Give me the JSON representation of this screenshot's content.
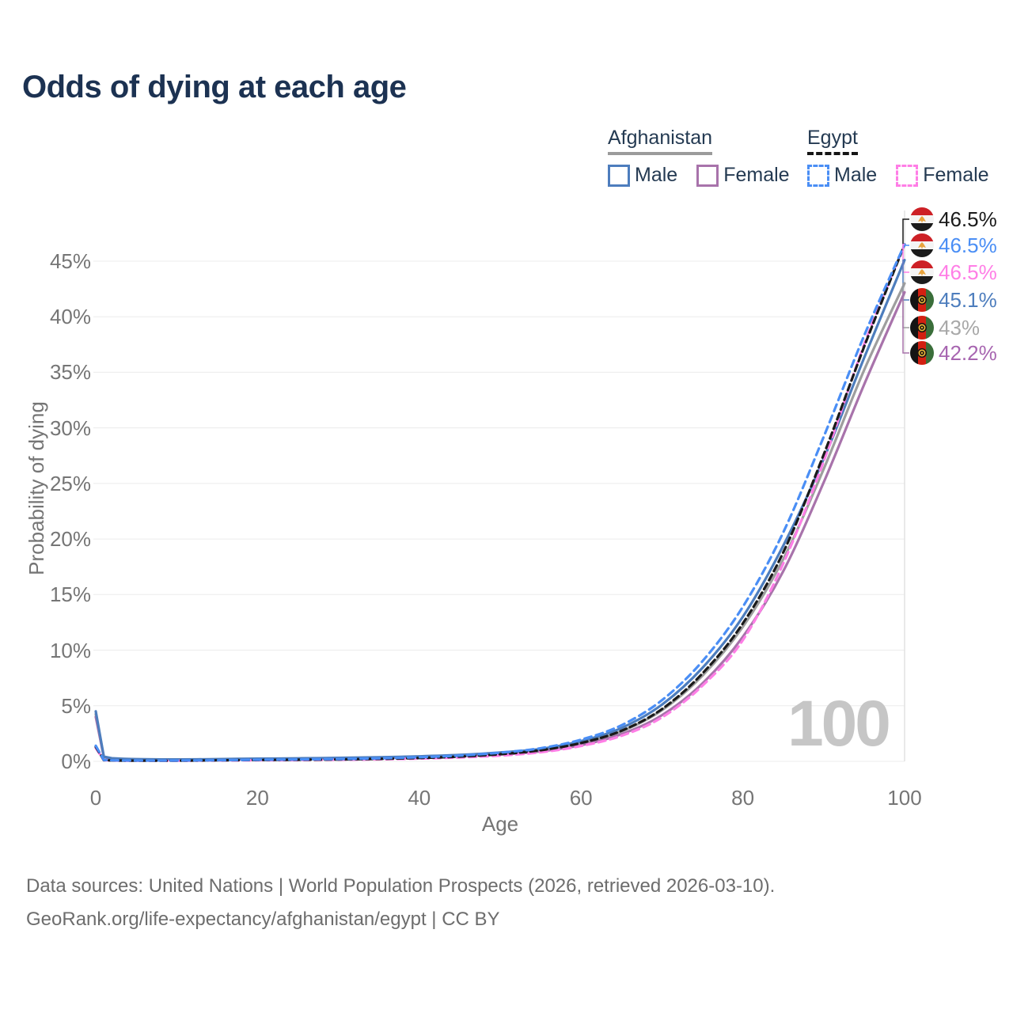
{
  "page": {
    "title": "Odds of dying at each age",
    "watermark": "100",
    "footer_line1": "Data sources: United Nations | World Population Prospects (2026, retrieved 2026-03-10).",
    "footer_line2": "GeoRank.org/life-expectancy/afghanistan/egypt | CC BY"
  },
  "legend": {
    "groups": [
      {
        "country": "Afghanistan",
        "line_style": "solid",
        "underline_color": "#9b9b9b",
        "items": [
          {
            "label": "Male",
            "color": "#4d7dbd",
            "dashed": false
          },
          {
            "label": "Female",
            "color": "#a873ab",
            "dashed": false
          }
        ]
      },
      {
        "country": "Egypt",
        "line_style": "dashed",
        "underline_color": "#151515",
        "items": [
          {
            "label": "Male",
            "color": "#4a8ef5",
            "dashed": true
          },
          {
            "label": "Female",
            "color": "#ff7ee6",
            "dashed": true
          }
        ]
      }
    ]
  },
  "chart_data": {
    "type": "line",
    "title": "Odds of dying at each age",
    "xlabel": "Age",
    "ylabel": "Probability of dying",
    "xlim": [
      0,
      100
    ],
    "ylim": [
      0,
      46.5
    ],
    "grid": "horizontal",
    "legend_position": "top-right",
    "hover_age_label": "100",
    "x_ticks": [
      0,
      20,
      40,
      60,
      80,
      100
    ],
    "y_tick_values": [
      0,
      5,
      10,
      15,
      20,
      25,
      30,
      35,
      40,
      45
    ],
    "y_tick_labels": [
      "0%",
      "5%",
      "10%",
      "15%",
      "20%",
      "25%",
      "30%",
      "35%",
      "40%",
      "45%"
    ],
    "ages": [
      0,
      1,
      2,
      5,
      10,
      15,
      20,
      25,
      30,
      35,
      40,
      45,
      50,
      55,
      60,
      65,
      70,
      75,
      80,
      85,
      90,
      95,
      100
    ],
    "series": [
      {
        "name": "Egypt Both sexes",
        "country": "egypt",
        "sex": "both",
        "color": "#1a1a1a",
        "dashed": true,
        "end_label": "46.5%",
        "end_label_color": "#1a1a1a",
        "values": [
          1.3,
          0.11,
          0.08,
          0.06,
          0.06,
          0.09,
          0.12,
          0.14,
          0.17,
          0.22,
          0.3,
          0.43,
          0.64,
          1.0,
          1.65,
          2.75,
          4.7,
          7.9,
          12.4,
          18.8,
          27.6,
          37.3,
          46.5
        ]
      },
      {
        "name": "Egypt Male",
        "country": "egypt",
        "sex": "male",
        "color": "#4a8ef5",
        "dashed": true,
        "end_label": "46.5%",
        "end_label_color": "#4a8ef5",
        "values": [
          1.4,
          0.12,
          0.09,
          0.07,
          0.07,
          0.1,
          0.14,
          0.17,
          0.21,
          0.27,
          0.37,
          0.52,
          0.78,
          1.18,
          1.95,
          3.25,
          5.5,
          9.0,
          13.9,
          20.6,
          29.2,
          38.3,
          46.5
        ]
      },
      {
        "name": "Egypt Female",
        "country": "egypt",
        "sex": "female",
        "color": "#ff7ee6",
        "dashed": true,
        "end_label": "46.5%",
        "end_label_color": "#ff7ee6",
        "values": [
          1.2,
          0.1,
          0.07,
          0.05,
          0.05,
          0.07,
          0.09,
          0.11,
          0.14,
          0.18,
          0.25,
          0.35,
          0.52,
          0.82,
          1.38,
          2.3,
          3.95,
          6.8,
          10.9,
          17.8,
          27.0,
          37.5,
          46.5
        ]
      },
      {
        "name": "Afghanistan Male",
        "country": "afghanistan",
        "sex": "male",
        "color": "#4d7dbd",
        "dashed": false,
        "end_label": "45.1%",
        "end_label_color": "#4d7dbd",
        "values": [
          4.5,
          0.42,
          0.28,
          0.2,
          0.17,
          0.2,
          0.24,
          0.27,
          0.31,
          0.37,
          0.45,
          0.58,
          0.8,
          1.12,
          1.82,
          3.0,
          5.1,
          8.4,
          13.0,
          19.4,
          27.2,
          36.3,
          45.1
        ]
      },
      {
        "name": "Afghanistan Both sexes",
        "country": "afghanistan",
        "sex": "both",
        "color": "#9e9e9e",
        "dashed": false,
        "end_label": "43%",
        "end_label_color": "#a8a8a8",
        "values": [
          4.25,
          0.4,
          0.26,
          0.18,
          0.15,
          0.18,
          0.21,
          0.24,
          0.28,
          0.33,
          0.4,
          0.52,
          0.71,
          1.0,
          1.63,
          2.7,
          4.6,
          7.7,
          12.1,
          18.2,
          26.3,
          35.2,
          43.0
        ]
      },
      {
        "name": "Afghanistan Female",
        "country": "afghanistan",
        "sex": "female",
        "color": "#a873ab",
        "dashed": false,
        "end_label": "42.2%",
        "end_label_color": "#a765b0",
        "values": [
          4.0,
          0.38,
          0.24,
          0.16,
          0.13,
          0.15,
          0.18,
          0.2,
          0.24,
          0.29,
          0.35,
          0.45,
          0.62,
          0.9,
          1.45,
          2.45,
          4.15,
          7.0,
          11.2,
          17.1,
          25.1,
          33.9,
          42.2
        ]
      }
    ]
  }
}
